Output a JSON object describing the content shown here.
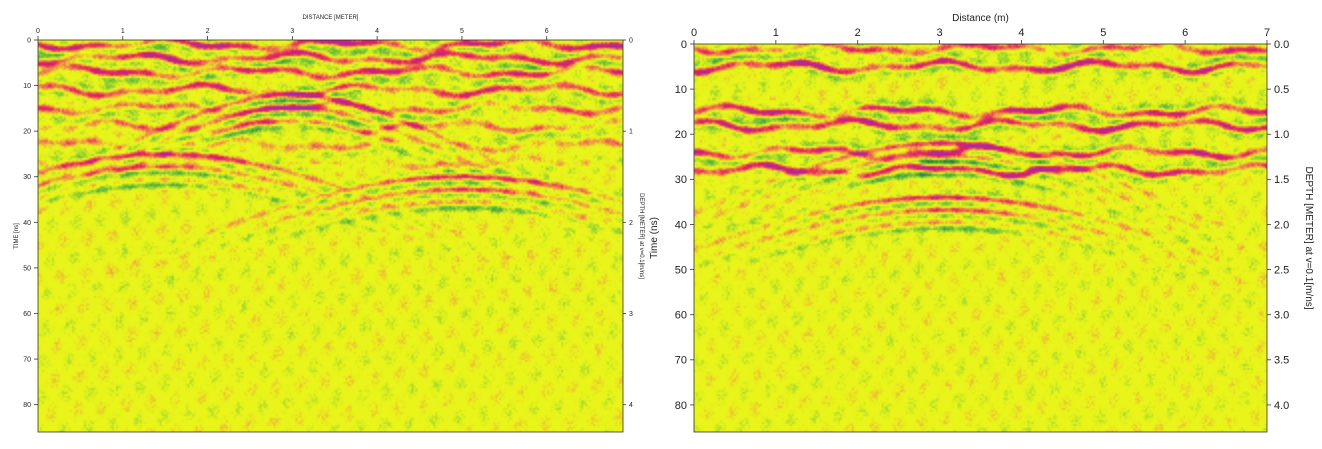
{
  "chart_data": [
    {
      "type": "heatmap",
      "title": "",
      "xlabel": "DISTANCE [METER]",
      "ylabel": "TIME [ns]",
      "y2label": "DEPTH [METER] at v=0.1[m/ns]",
      "xlim": [
        0,
        6.9
      ],
      "ylim": [
        0,
        86
      ],
      "y2lim": [
        0,
        4.3
      ],
      "xticks": [
        0,
        1,
        2,
        3,
        4,
        5,
        6
      ],
      "yticks": [
        0,
        10,
        20,
        30,
        40,
        50,
        60,
        70,
        80
      ],
      "y2ticks": [
        0,
        1,
        2,
        3,
        4
      ],
      "grid": false,
      "colormap": {
        "background": "#e8f41a",
        "positive": [
          "#f08a4a",
          "#e6205a",
          "#b0289c"
        ],
        "negative": [
          "#6fc23a",
          "#2a8a3a",
          "#23239a"
        ]
      },
      "features": [
        {
          "kind": "horizontal_reflectors",
          "time_ns": [
            1,
            4,
            7,
            11,
            15,
            19,
            23,
            27
          ],
          "strength": [
            1.0,
            1.0,
            0.9,
            0.75,
            0.6,
            0.5,
            0.4,
            0.3
          ]
        },
        {
          "kind": "hyperbola",
          "apex_distance_m": 3.0,
          "apex_time_ns": 12
        },
        {
          "kind": "hyperbola",
          "apex_distance_m": 1.5,
          "apex_time_ns": 25
        },
        {
          "kind": "hyperbola",
          "apex_distance_m": 5.0,
          "apex_time_ns": 30
        }
      ]
    },
    {
      "type": "heatmap",
      "title": "",
      "xlabel": "Distance (m)",
      "ylabel": "Time (ns)",
      "y2label": "DEPTH [METER] at v=0.1[m/ns]",
      "xlim": [
        0,
        7
      ],
      "ylim": [
        0,
        86
      ],
      "y2lim": [
        0,
        4.3
      ],
      "xticks": [
        0,
        1,
        2,
        3,
        4,
        5,
        6,
        7
      ],
      "yticks": [
        0,
        10,
        20,
        30,
        40,
        50,
        60,
        70,
        80
      ],
      "y2ticks": [
        "0.0",
        "0.5",
        "1.0",
        "1.5",
        "2.0",
        "2.5",
        "3.0",
        "3.5",
        "4.0"
      ],
      "grid": false,
      "colormap": {
        "background": "#e8f41a",
        "positive": [
          "#f08a4a",
          "#e6205a",
          "#b0289c"
        ],
        "negative": [
          "#6fc23a",
          "#2a8a3a",
          "#23239a"
        ]
      },
      "features": [
        {
          "kind": "horizontal_reflectors",
          "time_ns": [
            1,
            5,
            15,
            18,
            24,
            28
          ],
          "strength": [
            0.7,
            1.0,
            1.0,
            1.0,
            0.9,
            1.0
          ]
        },
        {
          "kind": "hyperbola",
          "apex_distance_m": 3.05,
          "apex_time_ns": 22
        },
        {
          "kind": "hyperbola",
          "apex_distance_m": 3.05,
          "apex_time_ns": 34
        }
      ]
    }
  ]
}
